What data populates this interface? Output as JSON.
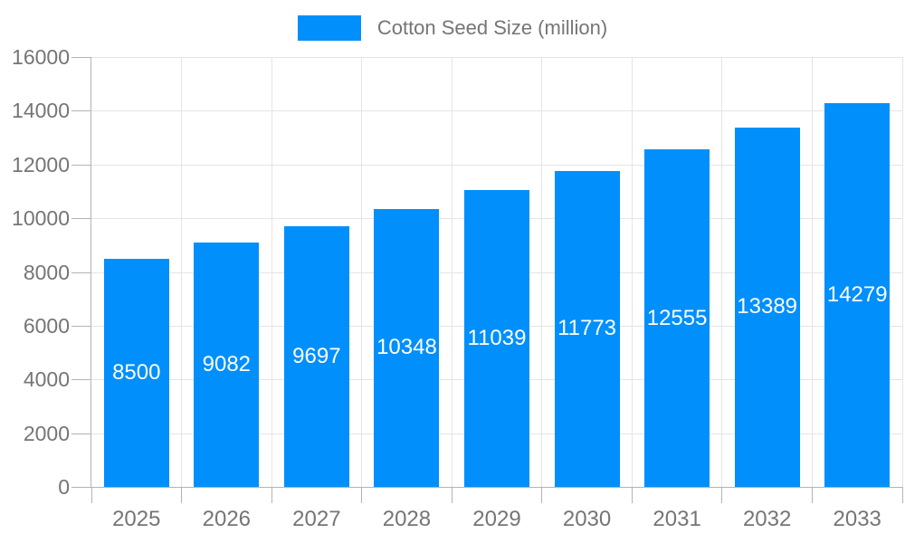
{
  "legend": {
    "label": "Cotton Seed Size (million)",
    "swatch_color": "#008FFB"
  },
  "chart_data": {
    "type": "bar",
    "title": "Cotton Seed Size (million)",
    "categories": [
      "2025",
      "2026",
      "2027",
      "2028",
      "2029",
      "2030",
      "2031",
      "2032",
      "2033"
    ],
    "series": [
      {
        "name": "Cotton Seed Size (million)",
        "values": [
          8500,
          9082,
          9697,
          10348,
          11039,
          11773,
          12555,
          13389,
          14279
        ]
      }
    ],
    "data_labels": [
      "8500",
      "9082",
      "9697",
      "10348",
      "11039",
      "11773",
      "12555",
      "13389",
      "14279"
    ],
    "xlabel": "",
    "ylabel": "",
    "ylim": [
      0,
      16000
    ],
    "ytick_step": 2000,
    "ytick_labels": [
      "0",
      "2000",
      "4000",
      "6000",
      "8000",
      "10000",
      "12000",
      "14000",
      "16000"
    ],
    "grid": true,
    "legend_position": "top",
    "colors": {
      "bar": "#008FFB",
      "bar_label": "#ffffff",
      "axis_text": "#757575",
      "gridline": "#e4e4e4",
      "axis_line": "#b3b3b3"
    }
  }
}
